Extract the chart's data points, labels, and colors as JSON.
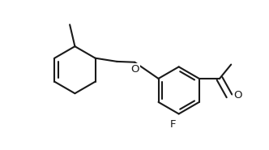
{
  "background_color": "#ffffff",
  "line_color": "#1a1a1a",
  "line_width": 1.5,
  "font_size": 9,
  "figsize": [
    3.32,
    1.85
  ],
  "dpi": 100,
  "xlim": [
    0.0,
    6.6
  ],
  "ylim": [
    -1.8,
    2.6
  ]
}
